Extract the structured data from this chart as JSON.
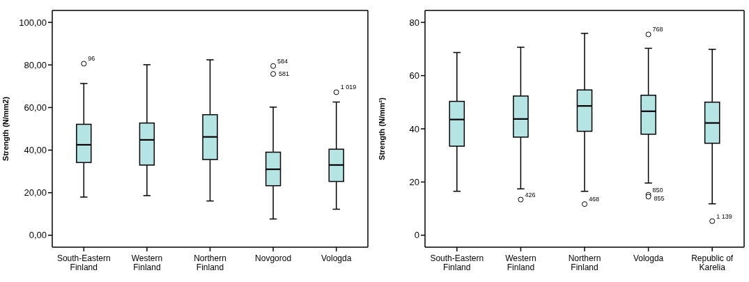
{
  "chart_data": [
    {
      "type": "box",
      "ylabel": "Strength (N/mm2)",
      "categories": [
        "South-Eastern Finland",
        "Western Finland",
        "Northern Finland",
        "Novgorod",
        "Vologda"
      ],
      "color": "#b4e4e4",
      "ylim": [
        -5.6,
        105.6
      ],
      "yticks": [
        {
          "value": 0,
          "label": "0,00"
        },
        {
          "value": 20,
          "label": "20,00"
        },
        {
          "value": 40,
          "label": "40,00"
        },
        {
          "value": 60,
          "label": "60,00"
        },
        {
          "value": 80,
          "label": "80,00"
        },
        {
          "value": 100,
          "label": "100,00"
        }
      ],
      "grid": false,
      "legend": false,
      "boxes": [
        {
          "low": 18.0,
          "q1": 34.2,
          "median": 42.5,
          "q3": 52.1,
          "high": 71.2,
          "outliers": [
            80.6
          ]
        },
        {
          "low": 18.7,
          "q1": 33.0,
          "median": 44.8,
          "q3": 52.7,
          "high": 80.0
        },
        {
          "low": 16.2,
          "q1": 35.6,
          "median": 46.2,
          "q3": 56.6,
          "high": 82.3
        },
        {
          "low": 7.7,
          "q1": 23.3,
          "median": 31.0,
          "q3": 39.0,
          "high": 60.1,
          "outliers": [
            79.5,
            75.8
          ]
        },
        {
          "low": 12.3,
          "q1": 25.3,
          "median": 33.0,
          "q3": 40.4,
          "high": 62.5,
          "outliers": [
            67.2
          ]
        }
      ],
      "annotations": [
        "96",
        "584",
        "581",
        "1 019"
      ]
    },
    {
      "type": "box",
      "ylabel": "Strength (N/mm²)",
      "categories": [
        "South-Eastern Finland",
        "Western Finland",
        "Northern Finland",
        "Vologda",
        "Republic of Karelia"
      ],
      "color": "#b4e4e4",
      "ylim": [
        -4.5,
        84.5
      ],
      "yticks": [
        0,
        20,
        40,
        60,
        80
      ],
      "grid": false,
      "legend": false,
      "boxes": [
        {
          "low": 16.6,
          "q1": 33.5,
          "median": 43.5,
          "q3": 50.3,
          "high": 68.6
        },
        {
          "low": 17.5,
          "q1": 36.9,
          "median": 43.7,
          "q3": 52.3,
          "high": 70.6,
          "outliers": [
            13.4
          ]
        },
        {
          "low": 16.6,
          "q1": 39.1,
          "median": 48.6,
          "q3": 54.6,
          "high": 75.8,
          "outliers": [
            11.7
          ]
        },
        {
          "low": 19.7,
          "q1": 38.0,
          "median": 46.6,
          "q3": 52.6,
          "high": 70.2,
          "outliers": [
            75.5,
            15.2,
            14.5
          ]
        },
        {
          "low": 11.9,
          "q1": 34.6,
          "median": 42.2,
          "q3": 50.0,
          "high": 69.8,
          "outliers": [
            5.3
          ]
        }
      ],
      "annotations": [
        "426",
        "468",
        "768",
        "850",
        "855",
        "1 139"
      ]
    }
  ]
}
